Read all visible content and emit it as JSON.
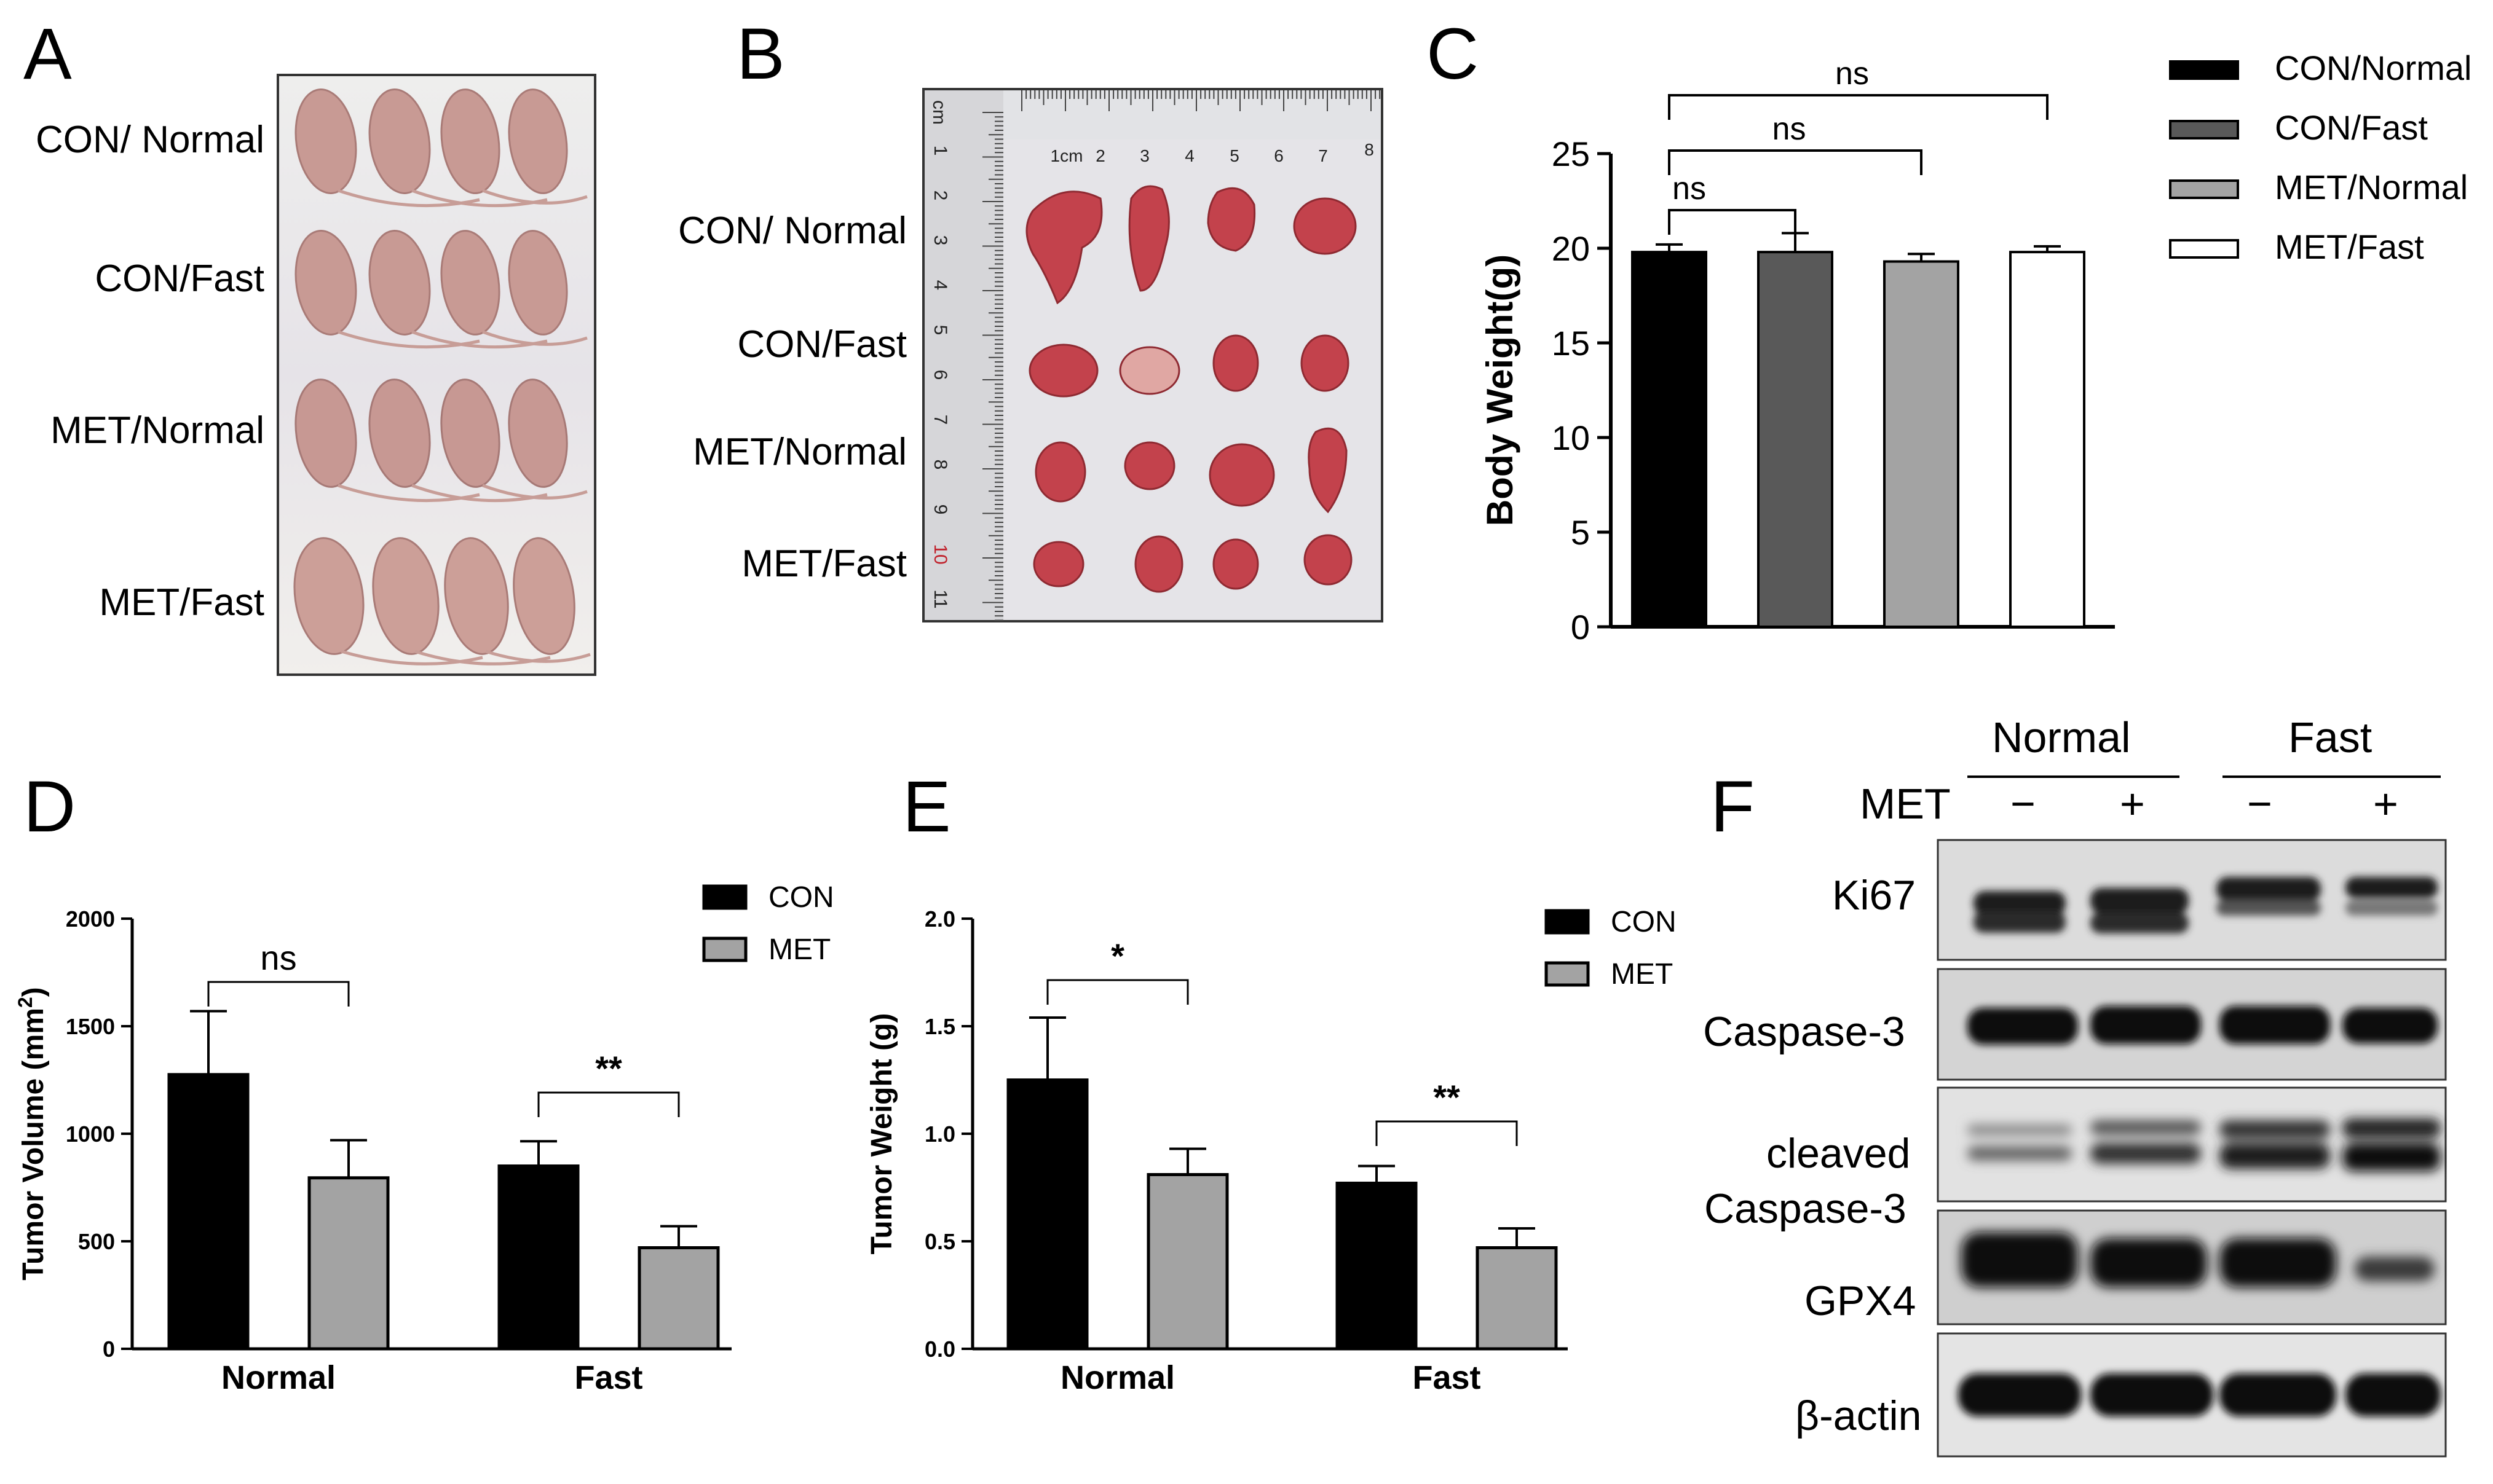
{
  "figure": {
    "letters": [
      "A",
      "B",
      "C",
      "D",
      "E",
      "F"
    ],
    "panel_a": {
      "row_labels": [
        "CON/ Normal",
        "CON/Fast",
        "MET/Normal",
        "MET/Fast"
      ]
    },
    "panel_b": {
      "row_labels": [
        "CON/ Normal",
        "CON/Fast",
        "MET/Normal",
        "MET/Fast"
      ],
      "ruler_top": [
        "1cm",
        "2",
        "3",
        "4",
        "5",
        "6",
        "7",
        "8"
      ],
      "ruler_left": [
        "cm",
        "1",
        "2",
        "3",
        "4",
        "5",
        "6",
        "7",
        "8",
        "9",
        "10",
        "11"
      ]
    },
    "panel_f": {
      "group_labels": [
        "Normal",
        "Fast"
      ],
      "treatment_label": "MET",
      "lane_signs": [
        "−",
        "+",
        "−",
        "+"
      ],
      "bands": [
        "Ki67",
        "Caspase-3",
        "cleaved",
        "Caspase-3",
        "GPX4",
        "β-actin"
      ]
    }
  },
  "colors": {
    "con": "#000000",
    "met": "#a3a3a3",
    "con_fast": "#595959",
    "met_fast": "#ffffff"
  },
  "chart_data": [
    {
      "type": "bar",
      "panel": "C",
      "ylabel": "Body Weight(g)",
      "ylim": [
        0,
        25
      ],
      "yticks": [
        0,
        5,
        10,
        15,
        20,
        25
      ],
      "categories": [
        "CON/Normal",
        "CON/Fast",
        "MET/Normal",
        "MET/Fast"
      ],
      "values": [
        19.8,
        19.8,
        19.3,
        19.8
      ],
      "errors": [
        0.4,
        1.0,
        0.4,
        0.3
      ],
      "legend": [
        "CON/Normal",
        "CON/Fast",
        "MET/Normal",
        "MET/Fast"
      ],
      "legend_position": "right",
      "annotations": [
        {
          "from": 0,
          "to": 1,
          "label": "ns"
        },
        {
          "from": 0,
          "to": 2,
          "label": "ns"
        },
        {
          "from": 0,
          "to": 3,
          "label": "ns"
        }
      ]
    },
    {
      "type": "bar",
      "panel": "D",
      "ylabel": "Tumor Volume (mm",
      "ylabel_sup": "2",
      "ylabel_end": ")",
      "ylim": [
        0,
        2000
      ],
      "yticks": [
        0,
        500,
        1000,
        1500,
        2000
      ],
      "categories": [
        "Normal",
        "Fast"
      ],
      "series": [
        {
          "name": "CON",
          "values": [
            1275,
            850
          ],
          "errors": [
            295,
            115
          ]
        },
        {
          "name": "MET",
          "values": [
            795,
            470
          ],
          "errors": [
            175,
            100
          ]
        }
      ],
      "legend_position": "top-right",
      "annotations": [
        {
          "category": 0,
          "label": "ns"
        },
        {
          "category": 1,
          "label": "**"
        }
      ]
    },
    {
      "type": "bar",
      "panel": "E",
      "ylabel": "Tumor Weight (g)",
      "ylim": [
        0,
        2.0
      ],
      "yticks": [
        "0.0",
        "0.5",
        "1.0",
        "1.5",
        "2.0"
      ],
      "categories": [
        "Normal",
        "Fast"
      ],
      "series": [
        {
          "name": "CON",
          "values": [
            1.25,
            0.77
          ],
          "errors": [
            0.29,
            0.08
          ]
        },
        {
          "name": "MET",
          "values": [
            0.81,
            0.47
          ],
          "errors": [
            0.12,
            0.09
          ]
        }
      ],
      "legend_position": "top-right",
      "annotations": [
        {
          "category": 0,
          "label": "*"
        },
        {
          "category": 1,
          "label": "**"
        }
      ]
    }
  ]
}
